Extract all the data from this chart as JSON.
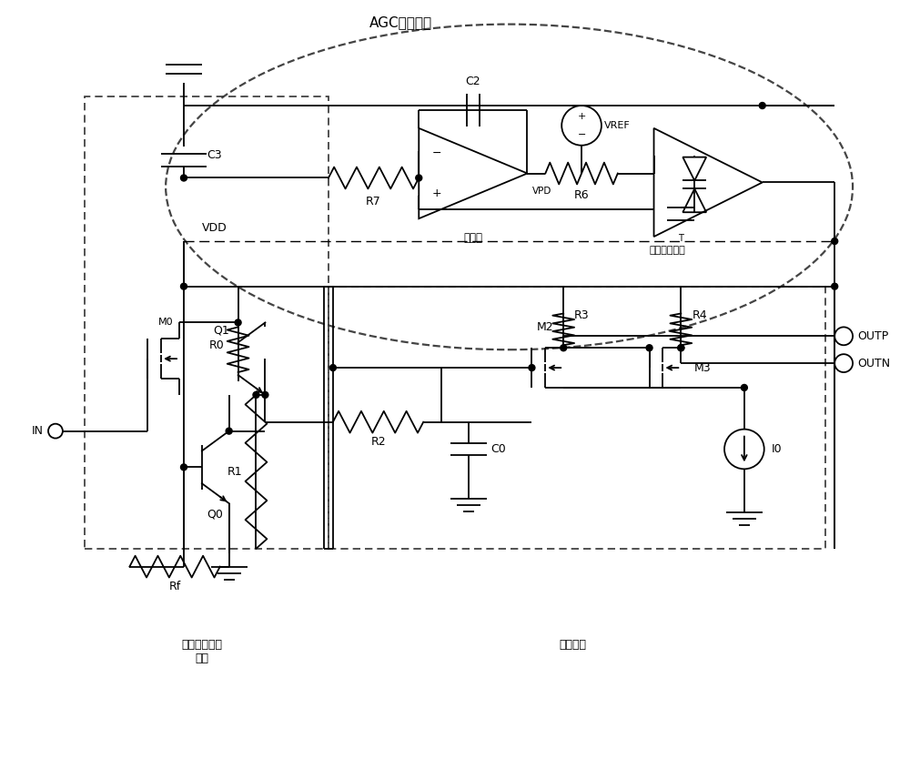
{
  "bg_color": "#ffffff",
  "lc": "#000000",
  "agc_label": "AGC反馈网络",
  "vdd_label": "VDD",
  "c3_label": "C3",
  "c2_label": "C2",
  "r7_label": "R7",
  "r6_label": "R6",
  "vref_label": "VREF",
  "vpd_label": "VPD",
  "comparator_label": "比较器",
  "peak_detector_label": "峰值检测电路",
  "tia_label": "跨阻放大前端\n电路",
  "phase_splitter_label": "分相电路",
  "in_label": "IN",
  "outp_label": "OUTP",
  "outn_label": "OUTN",
  "rf_label": "Rf",
  "r0_label": "R0",
  "r1_label": "R1",
  "r2_label": "R2",
  "r3_label": "R3",
  "r4_label": "R4",
  "c0_label": "C0",
  "q0_label": "Q0",
  "q1_label": "Q1",
  "m0_label": "M0",
  "m2_label": "M2",
  "m3_label": "M3",
  "i0_label": "I0",
  "fig_width": 10.0,
  "fig_height": 8.34
}
